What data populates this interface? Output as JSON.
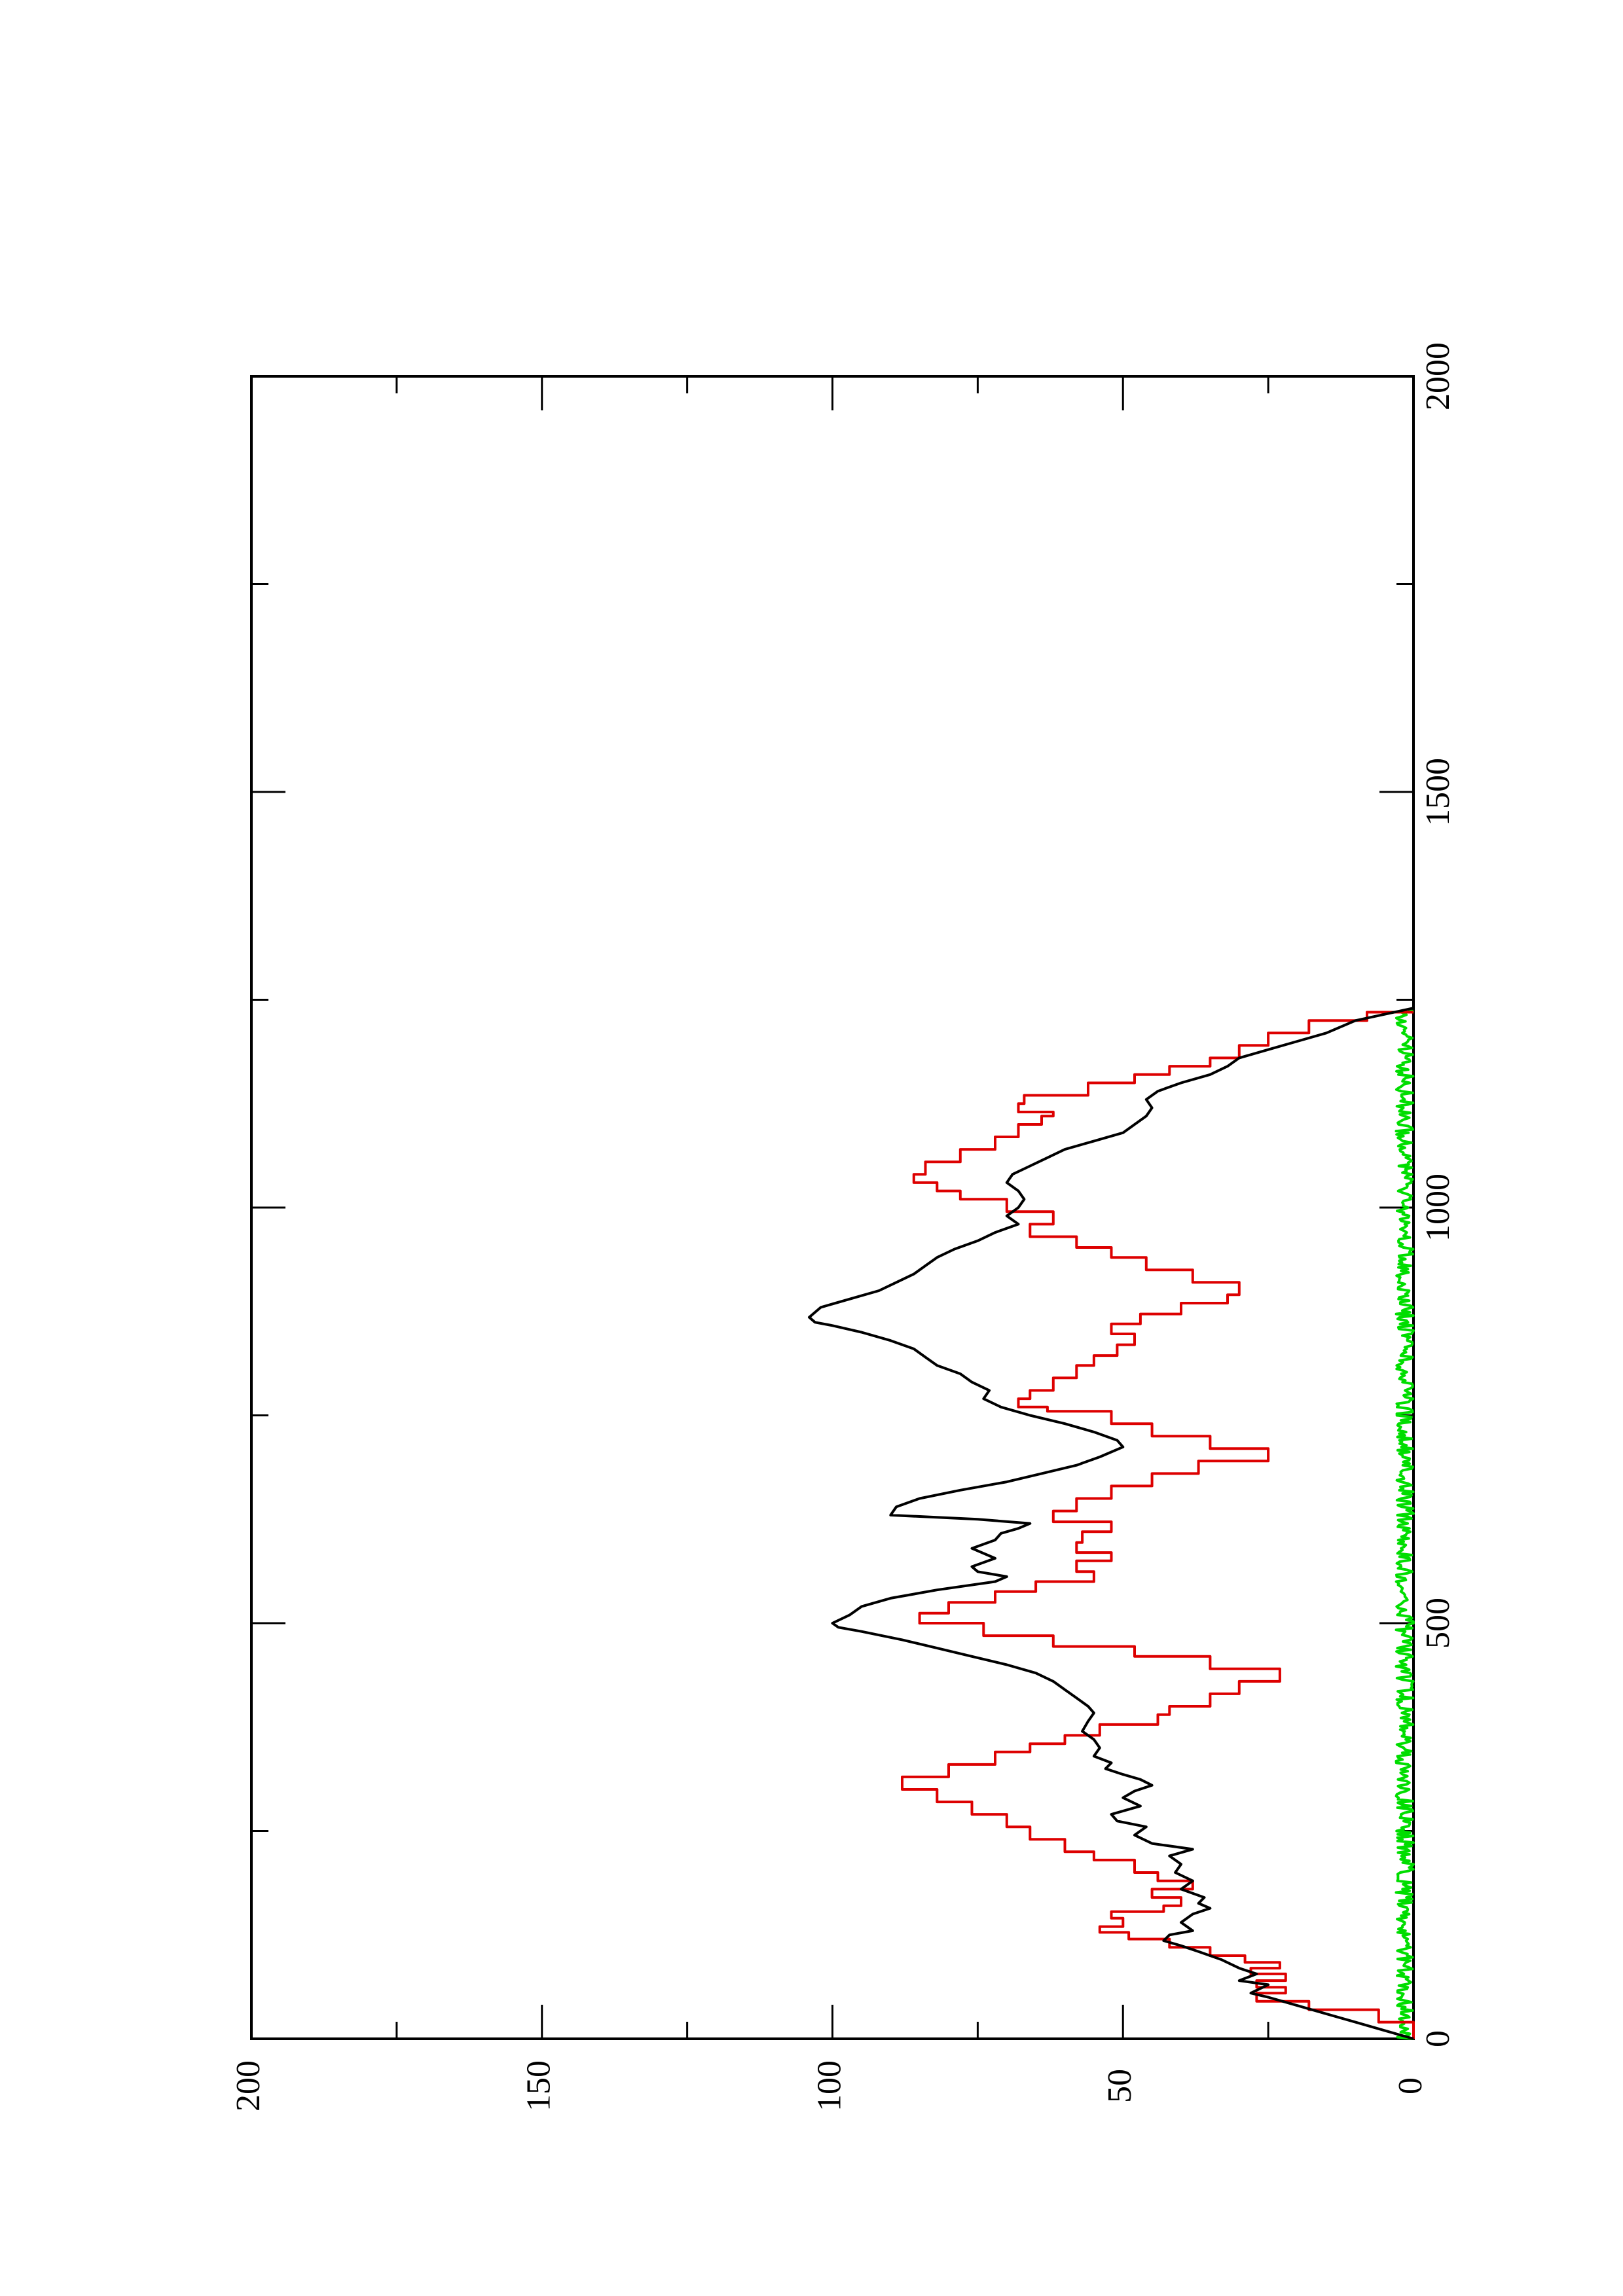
{
  "chart_data": {
    "type": "line",
    "orientation": "rotated-90-clockwise",
    "title": "",
    "xlabel": "",
    "ylabel": "",
    "xlim": [
      0,
      2000
    ],
    "ylim": [
      0,
      200
    ],
    "x_major_ticks": [
      0,
      500,
      1000,
      1500,
      2000
    ],
    "x_minor_ticks": [
      250,
      750,
      1250,
      1750
    ],
    "y_major_ticks": [
      0,
      50,
      100,
      150,
      200
    ],
    "y_minor_ticks": [
      25,
      75,
      125,
      175
    ],
    "x_tick_labels": [
      "0",
      "500",
      "1000",
      "1500",
      "2000"
    ],
    "y_tick_labels": [
      "0",
      "50",
      "100",
      "150",
      "200"
    ],
    "grid": false,
    "legend": "none",
    "series": [
      {
        "color": "#000000",
        "style": "smooth",
        "points": [
          [
            0,
            0
          ],
          [
            10,
            5
          ],
          [
            20,
            10
          ],
          [
            30,
            15
          ],
          [
            40,
            20
          ],
          [
            50,
            25
          ],
          [
            55,
            28
          ],
          [
            65,
            25
          ],
          [
            70,
            30
          ],
          [
            78,
            27
          ],
          [
            85,
            30
          ],
          [
            95,
            33
          ],
          [
            105,
            37
          ],
          [
            112,
            40
          ],
          [
            118,
            43
          ],
          [
            125,
            42
          ],
          [
            130,
            38
          ],
          [
            140,
            40
          ],
          [
            150,
            38
          ],
          [
            157,
            35
          ],
          [
            163,
            37
          ],
          [
            170,
            36
          ],
          [
            180,
            40
          ],
          [
            190,
            38
          ],
          [
            200,
            41
          ],
          [
            210,
            40
          ],
          [
            220,
            42
          ],
          [
            228,
            38
          ],
          [
            235,
            45
          ],
          [
            245,
            48
          ],
          [
            255,
            46
          ],
          [
            262,
            51
          ],
          [
            270,
            52
          ],
          [
            280,
            47
          ],
          [
            290,
            50
          ],
          [
            298,
            48
          ],
          [
            305,
            45
          ],
          [
            312,
            47
          ],
          [
            318,
            50
          ],
          [
            325,
            53
          ],
          [
            332,
            52
          ],
          [
            340,
            55
          ],
          [
            350,
            54
          ],
          [
            360,
            55
          ],
          [
            370,
            57
          ],
          [
            382,
            56
          ],
          [
            392,
            55
          ],
          [
            400,
            56
          ],
          [
            410,
            58
          ],
          [
            420,
            60
          ],
          [
            430,
            62
          ],
          [
            440,
            65
          ],
          [
            450,
            70
          ],
          [
            460,
            76
          ],
          [
            470,
            82
          ],
          [
            480,
            88
          ],
          [
            490,
            95
          ],
          [
            495,
            99
          ],
          [
            500,
            100
          ],
          [
            510,
            97
          ],
          [
            520,
            95
          ],
          [
            530,
            90
          ],
          [
            540,
            82
          ],
          [
            550,
            72
          ],
          [
            556,
            70
          ],
          [
            562,
            75
          ],
          [
            568,
            76
          ],
          [
            578,
            72
          ],
          [
            590,
            76
          ],
          [
            600,
            72
          ],
          [
            608,
            71
          ],
          [
            614,
            68
          ],
          [
            620,
            66
          ],
          [
            625,
            75
          ],
          [
            630,
            90
          ],
          [
            640,
            89
          ],
          [
            650,
            85
          ],
          [
            660,
            78
          ],
          [
            670,
            70
          ],
          [
            680,
            64
          ],
          [
            690,
            58
          ],
          [
            700,
            54
          ],
          [
            712,
            50
          ],
          [
            720,
            51
          ],
          [
            730,
            55
          ],
          [
            740,
            60
          ],
          [
            750,
            66
          ],
          [
            760,
            71
          ],
          [
            770,
            74
          ],
          [
            780,
            73
          ],
          [
            790,
            76
          ],
          [
            800,
            78
          ],
          [
            810,
            82
          ],
          [
            820,
            84
          ],
          [
            830,
            86
          ],
          [
            840,
            90
          ],
          [
            850,
            95
          ],
          [
            858,
            100
          ],
          [
            862,
            103
          ],
          [
            868,
            104
          ],
          [
            880,
            102
          ],
          [
            890,
            97
          ],
          [
            900,
            92
          ],
          [
            910,
            89
          ],
          [
            920,
            86
          ],
          [
            930,
            84
          ],
          [
            940,
            82
          ],
          [
            950,
            79
          ],
          [
            960,
            75
          ],
          [
            970,
            72
          ],
          [
            980,
            68
          ],
          [
            990,
            70
          ],
          [
            1000,
            68
          ],
          [
            1010,
            67
          ],
          [
            1020,
            68
          ],
          [
            1030,
            70
          ],
          [
            1040,
            69
          ],
          [
            1050,
            66
          ],
          [
            1060,
            63
          ],
          [
            1070,
            60
          ],
          [
            1080,
            55
          ],
          [
            1090,
            50
          ],
          [
            1100,
            48
          ],
          [
            1110,
            46
          ],
          [
            1120,
            45
          ],
          [
            1130,
            46
          ],
          [
            1140,
            44
          ],
          [
            1150,
            40
          ],
          [
            1160,
            35
          ],
          [
            1170,
            32
          ],
          [
            1180,
            30
          ],
          [
            1190,
            25
          ],
          [
            1200,
            20
          ],
          [
            1210,
            15
          ],
          [
            1225,
            10
          ],
          [
            1240,
            0
          ]
        ]
      },
      {
        "color": "#dd0000",
        "style": "step",
        "points": [
          [
            0,
            0
          ],
          [
            20,
            6
          ],
          [
            35,
            18
          ],
          [
            45,
            27
          ],
          [
            55,
            22
          ],
          [
            62,
            27
          ],
          [
            70,
            22
          ],
          [
            78,
            28
          ],
          [
            85,
            23
          ],
          [
            92,
            29
          ],
          [
            100,
            35
          ],
          [
            110,
            42
          ],
          [
            120,
            49
          ],
          [
            128,
            54
          ],
          [
            135,
            50
          ],
          [
            145,
            52
          ],
          [
            153,
            43
          ],
          [
            160,
            40
          ],
          [
            170,
            45
          ],
          [
            180,
            38
          ],
          [
            190,
            44
          ],
          [
            200,
            48
          ],
          [
            215,
            55
          ],
          [
            225,
            60
          ],
          [
            240,
            66
          ],
          [
            255,
            70
          ],
          [
            270,
            76
          ],
          [
            285,
            82
          ],
          [
            300,
            88
          ],
          [
            315,
            80
          ],
          [
            330,
            72
          ],
          [
            345,
            66
          ],
          [
            355,
            60
          ],
          [
            365,
            54
          ],
          [
            378,
            44
          ],
          [
            390,
            42
          ],
          [
            400,
            35
          ],
          [
            415,
            30
          ],
          [
            430,
            23
          ],
          [
            445,
            35
          ],
          [
            460,
            48
          ],
          [
            472,
            62
          ],
          [
            485,
            74
          ],
          [
            500,
            85
          ],
          [
            512,
            80
          ],
          [
            525,
            72
          ],
          [
            538,
            65
          ],
          [
            550,
            55
          ],
          [
            562,
            58
          ],
          [
            575,
            52
          ],
          [
            585,
            58
          ],
          [
            597,
            57
          ],
          [
            610,
            52
          ],
          [
            622,
            62
          ],
          [
            635,
            58
          ],
          [
            650,
            52
          ],
          [
            665,
            45
          ],
          [
            680,
            37
          ],
          [
            695,
            25
          ],
          [
            710,
            35
          ],
          [
            725,
            45
          ],
          [
            740,
            52
          ],
          [
            755,
            63
          ],
          [
            760,
            68
          ],
          [
            770,
            66
          ],
          [
            780,
            62
          ],
          [
            795,
            58
          ],
          [
            810,
            55
          ],
          [
            822,
            51
          ],
          [
            835,
            48
          ],
          [
            848,
            52
          ],
          [
            860,
            47
          ],
          [
            872,
            40
          ],
          [
            885,
            32
          ],
          [
            895,
            30
          ],
          [
            910,
            38
          ],
          [
            925,
            46
          ],
          [
            940,
            52
          ],
          [
            952,
            58
          ],
          [
            965,
            66
          ],
          [
            980,
            62
          ],
          [
            995,
            70
          ],
          [
            1010,
            78
          ],
          [
            1020,
            82
          ],
          [
            1030,
            86
          ],
          [
            1040,
            84
          ],
          [
            1055,
            78
          ],
          [
            1070,
            72
          ],
          [
            1085,
            68
          ],
          [
            1100,
            64
          ],
          [
            1110,
            62
          ],
          [
            1115,
            68
          ],
          [
            1125,
            67
          ],
          [
            1135,
            56
          ],
          [
            1150,
            48
          ],
          [
            1160,
            42
          ],
          [
            1170,
            35
          ],
          [
            1180,
            30
          ],
          [
            1195,
            25
          ],
          [
            1210,
            18
          ],
          [
            1225,
            8
          ],
          [
            1235,
            0
          ]
        ]
      },
      {
        "color": "#00dd00",
        "style": "noise",
        "amplitude": 1.5,
        "xrange": [
          0,
          1240
        ]
      }
    ]
  }
}
